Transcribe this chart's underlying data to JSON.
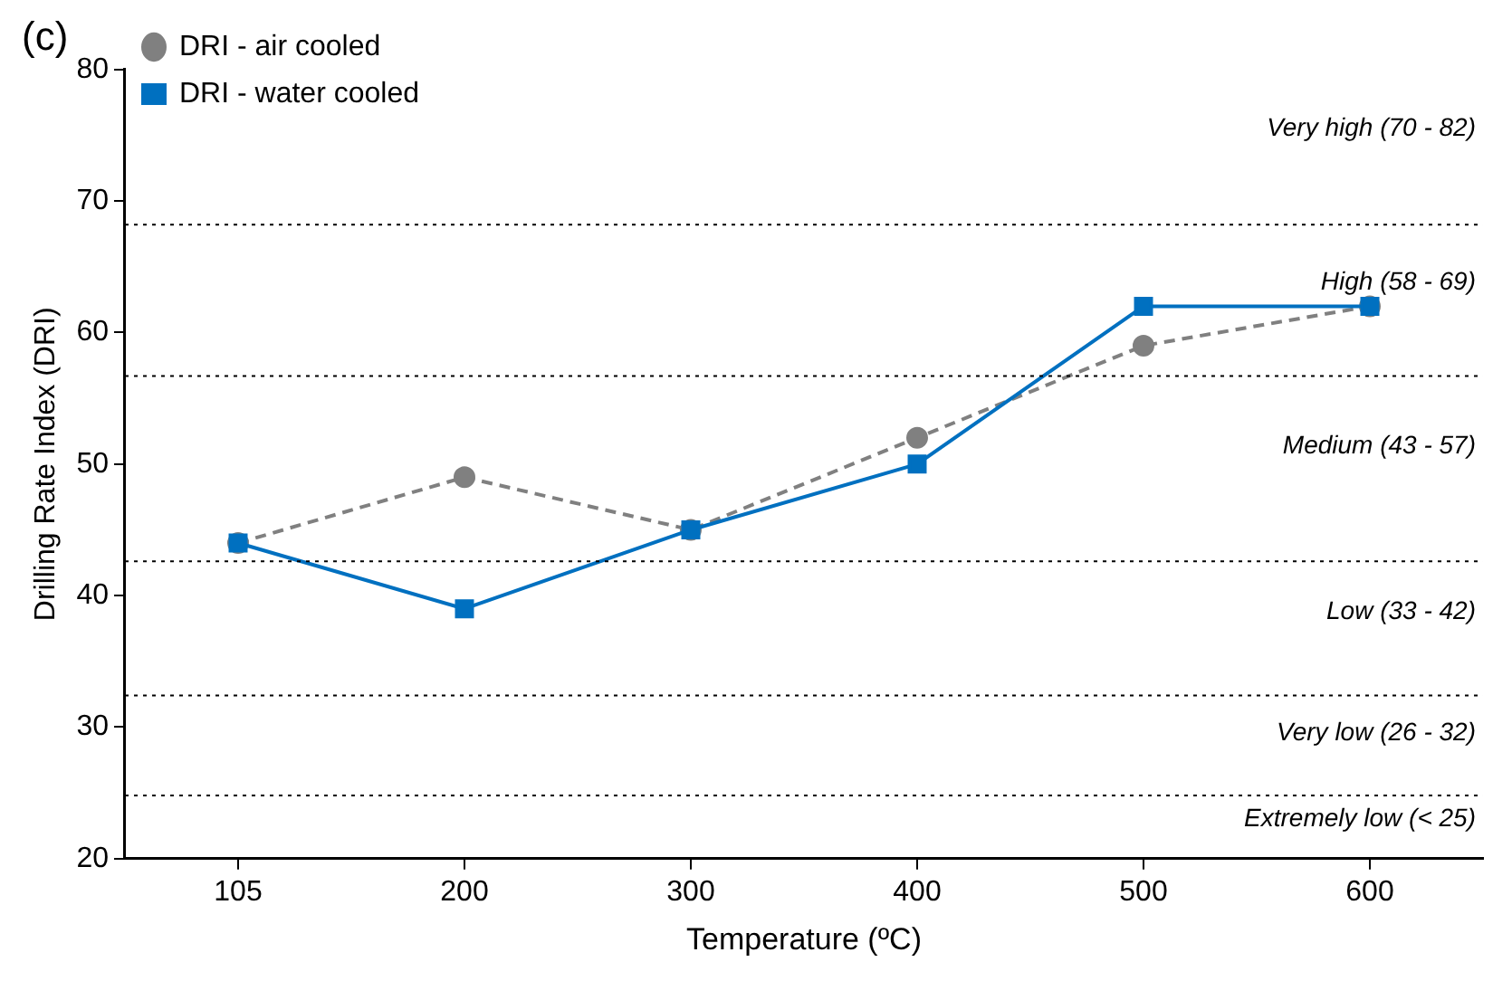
{
  "chart_data": {
    "type": "line",
    "title": "(c)",
    "xlabel": "Temperature (ºC)",
    "ylabel": "Drilling Rate Index (DRI)",
    "categories": [
      "105",
      "200",
      "300",
      "400",
      "500",
      "600"
    ],
    "series": [
      {
        "name": "DRI - air cooled",
        "color": "#808080",
        "values": [
          44,
          49,
          45,
          52,
          59,
          62
        ],
        "marker": "circle",
        "line_style": "dashed"
      },
      {
        "name": "DRI - water cooled",
        "color": "#0070c0",
        "values": [
          44,
          39,
          45,
          50,
          62,
          62
        ],
        "marker": "square",
        "line_style": "solid"
      }
    ],
    "ylim": [
      20,
      80
    ],
    "yticks": [
      20,
      30,
      40,
      50,
      60,
      70,
      80
    ],
    "grid": false,
    "legend": "top left",
    "ref_lines": [
      {
        "axis": "y",
        "value": 68.2,
        "color": "#000000",
        "line_style": "dotted"
      },
      {
        "axis": "y",
        "value": 56.7,
        "color": "#000000",
        "line_style": "dotted"
      },
      {
        "axis": "y",
        "value": 42.6,
        "color": "#000000",
        "line_style": "dotted"
      },
      {
        "axis": "y",
        "value": 32.4,
        "color": "#000000",
        "line_style": "dotted"
      },
      {
        "axis": "y",
        "value": 24.8,
        "color": "#000000",
        "line_style": "dotted"
      }
    ],
    "annotations": [
      "Very high (70 - 82)",
      "High (58 - 69)",
      "Medium (43 - 57)",
      "Low (33 - 42)",
      "Very low (26 - 32)",
      "Extremely low (< 25)"
    ]
  }
}
